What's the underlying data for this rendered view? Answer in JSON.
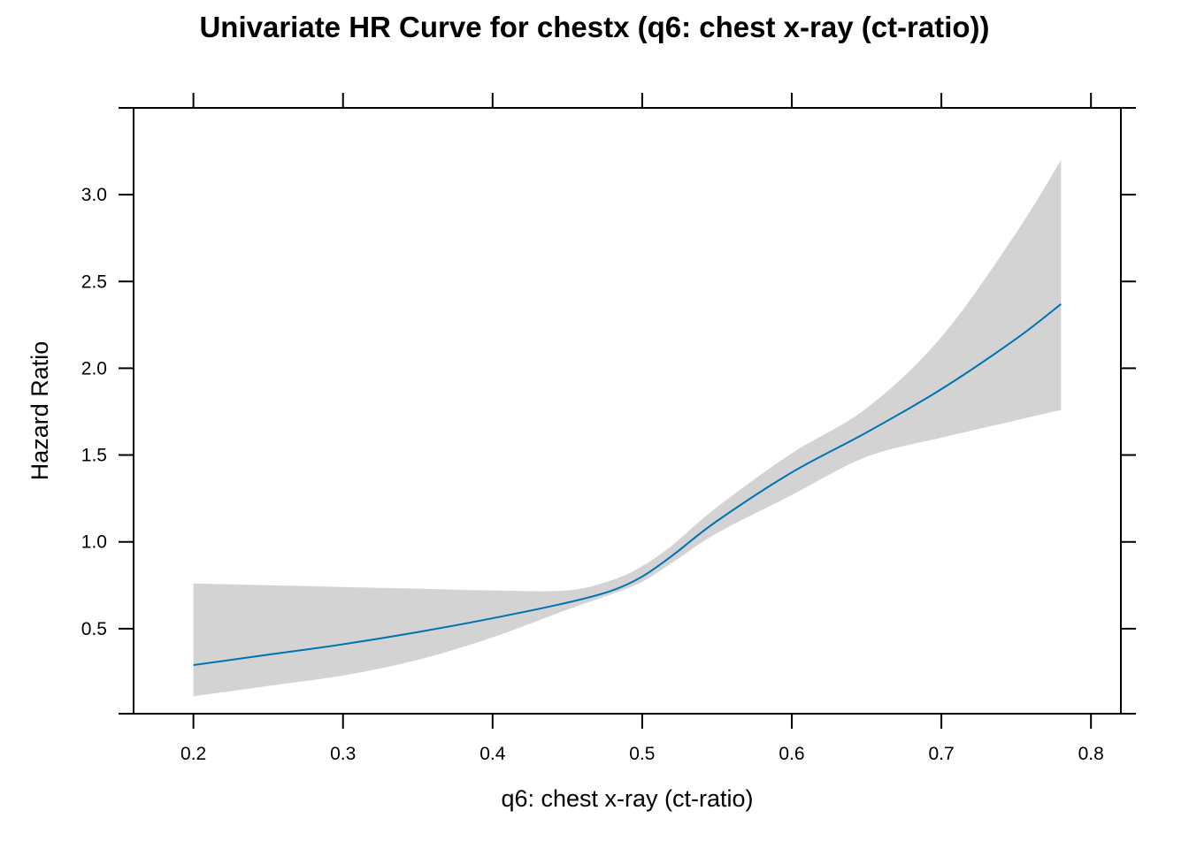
{
  "chart_data": {
    "type": "line",
    "title": "Univariate HR Curve for chestx (q6: chest x-ray (ct-ratio))",
    "xlabel": "q6: chest x-ray (ct-ratio)",
    "ylabel": "Hazard Ratio",
    "xlim": [
      0.16,
      0.82
    ],
    "ylim": [
      0.01,
      3.5
    ],
    "xticks": [
      0.2,
      0.3,
      0.4,
      0.5,
      0.6,
      0.7,
      0.8
    ],
    "xtick_labels": [
      "0.2",
      "0.3",
      "0.4",
      "0.5",
      "0.6",
      "0.7",
      "0.8"
    ],
    "yticks": [
      0.5,
      1.0,
      1.5,
      2.0,
      2.5,
      3.0
    ],
    "ytick_labels": [
      "0.5",
      "1.0",
      "1.5",
      "2.0",
      "2.5",
      "3.0"
    ],
    "grid": false,
    "colors": {
      "line": "#0072B2",
      "band": "#d3d3d3",
      "axis": "#000000"
    },
    "x": [
      0.2,
      0.25,
      0.3,
      0.35,
      0.4,
      0.45,
      0.48,
      0.5,
      0.52,
      0.55,
      0.6,
      0.65,
      0.7,
      0.75,
      0.78
    ],
    "series": [
      {
        "values": [
          0.29,
          0.35,
          0.41,
          0.48,
          0.56,
          0.65,
          0.72,
          0.8,
          0.92,
          1.12,
          1.4,
          1.63,
          1.88,
          2.17,
          2.37
        ]
      }
    ],
    "band_lower": [
      0.11,
      0.17,
      0.23,
      0.32,
      0.45,
      0.61,
      0.7,
      0.77,
      0.88,
      1.05,
      1.27,
      1.49,
      1.6,
      1.7,
      1.76
    ],
    "band_upper": [
      0.76,
      0.75,
      0.74,
      0.73,
      0.72,
      0.72,
      0.78,
      0.86,
      0.98,
      1.2,
      1.51,
      1.77,
      2.18,
      2.78,
      3.2
    ]
  }
}
